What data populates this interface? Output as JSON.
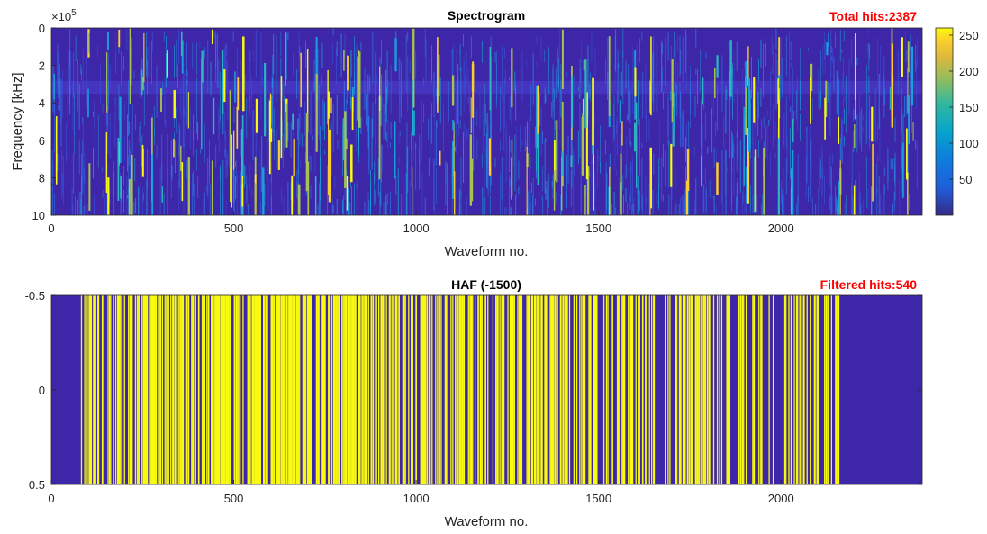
{
  "chart_data": [
    {
      "type": "heatmap",
      "title": "Spectrogram",
      "annotation": "Total hits:2387",
      "xlabel": "Waveform no.",
      "ylabel": "Frequency [kHz]",
      "y_exponent": "×10",
      "y_exponent_power": "5",
      "xlim": [
        0,
        2387
      ],
      "ylim": [
        0,
        10
      ],
      "y_reversed": true,
      "x_ticks": [
        "0",
        "500",
        "1000",
        "1500",
        "2000"
      ],
      "y_ticks": [
        "0",
        "2",
        "4",
        "6",
        "8",
        "10"
      ],
      "colorbar": {
        "ticks": [
          "50",
          "100",
          "150",
          "200",
          "250"
        ],
        "range": [
          0,
          260
        ],
        "colormap": "parula"
      },
      "background_color": "#3e26a8",
      "bright_waveforms": [
        10,
        100,
        150,
        185,
        215,
        250,
        275,
        300,
        315,
        335,
        355,
        372,
        410,
        440,
        470,
        490,
        500,
        510,
        520,
        560,
        580,
        600,
        625,
        640,
        660,
        680,
        700,
        725,
        760,
        800,
        812,
        822,
        840,
        900,
        940,
        990,
        1060,
        1100,
        1150,
        1200,
        1260,
        1300,
        1330,
        1380,
        1400,
        1425,
        1455,
        1465,
        1480,
        1530,
        1560,
        1600,
        1640,
        1700,
        1740,
        1780,
        1820,
        1860,
        1900,
        1910,
        1925,
        1950,
        1990,
        2030,
        2080,
        2120,
        2160,
        2200,
        2250,
        2300,
        2330,
        2345,
        2360
      ]
    },
    {
      "type": "heatmap",
      "title": "HAF (-1500)",
      "annotation": "Filtered hits:540",
      "xlabel": "Waveform no.",
      "ylabel": "",
      "xlim": [
        0,
        2387
      ],
      "ylim": [
        -0.5,
        0.5
      ],
      "y_reversed": true,
      "x_ticks": [
        "0",
        "500",
        "1000",
        "1500",
        "2000"
      ],
      "y_ticks": [
        "-0.5",
        "0",
        "0.5"
      ],
      "background_color": "#3e26a8",
      "hit_color": "#f9fb0e",
      "filtered_hits_count": 540
    }
  ]
}
